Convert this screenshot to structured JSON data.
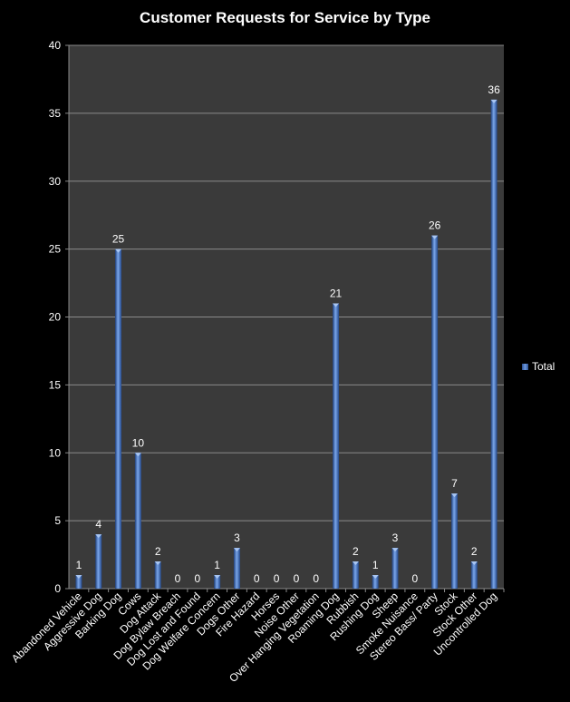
{
  "chart_data": {
    "type": "bar",
    "title": "Customer Requests for Service by Type",
    "xlabel": "",
    "ylabel": "",
    "ylim": [
      0,
      40
    ],
    "yticks": [
      0,
      5,
      10,
      15,
      20,
      25,
      30,
      35,
      40
    ],
    "grid": true,
    "legend_position": "right",
    "categories": [
      "Abandoned Vehicle",
      "Aggressive Dog",
      "Barking Dog",
      "Cows",
      "Dog Attack",
      "Dog Bylaw Breach",
      "Dog Lost and Found",
      "Dog Welfare Concern",
      "Dogs Other",
      "Fire Hazard",
      "Horses",
      "Noise Other",
      "Over Hanging Vegetation",
      "Roaming Dog",
      "Rubbish",
      "Rushing Dog",
      "Sheep",
      "Smoke Nuisance",
      "Stereo Bass/ Party",
      "Stock",
      "Stock Other",
      "Uncontrolled Dog"
    ],
    "series": [
      {
        "name": "Total",
        "values": [
          1,
          4,
          25,
          10,
          2,
          0,
          0,
          1,
          3,
          0,
          0,
          0,
          0,
          21,
          2,
          1,
          3,
          0,
          26,
          7,
          2,
          36
        ]
      }
    ],
    "colors": {
      "background": "#000000",
      "plot_area": "#3a3a3a",
      "bar": "#4a7fd0",
      "grid": "#8a8a8a",
      "text": "#ffffff"
    }
  }
}
